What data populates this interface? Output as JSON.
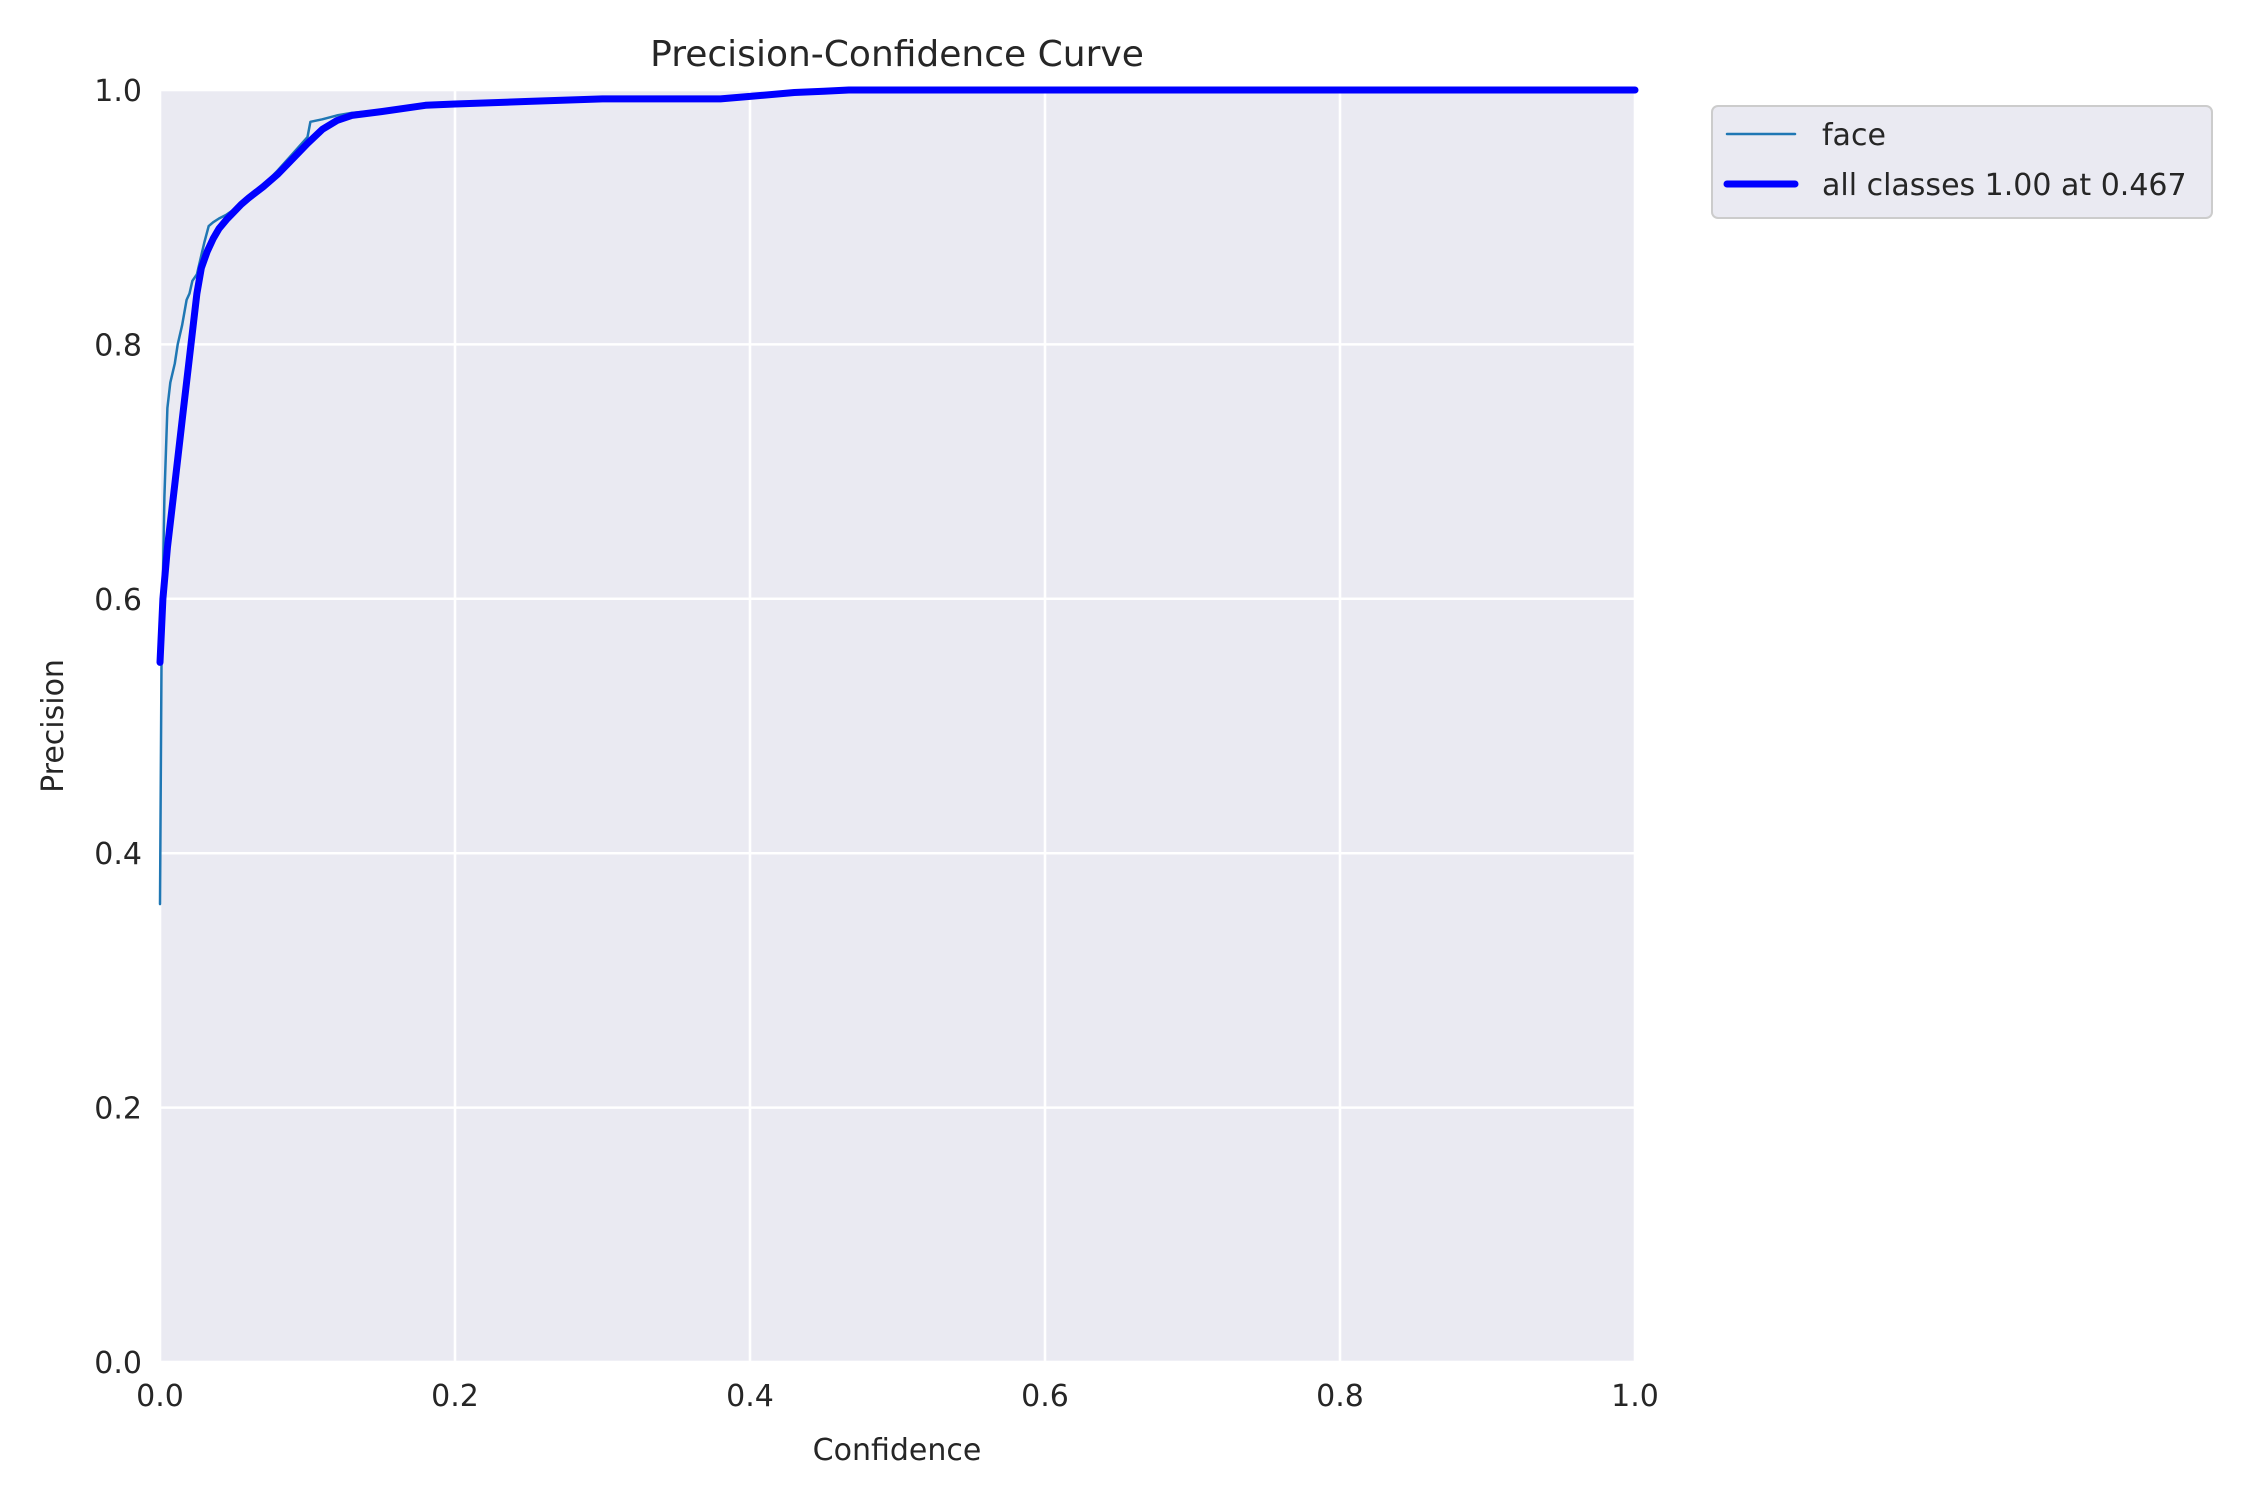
{
  "chart_data": {
    "type": "line",
    "title": "Precision-Confidence Curve",
    "xlabel": "Confidence",
    "ylabel": "Precision",
    "xlim": [
      0,
      1
    ],
    "ylim": [
      0,
      1
    ],
    "xticks": [
      "0.0",
      "0.2",
      "0.4",
      "0.6",
      "0.8",
      "1.0"
    ],
    "yticks": [
      "0.0",
      "0.2",
      "0.4",
      "0.6",
      "0.8",
      "1.0"
    ],
    "grid": true,
    "legend_position": "outside top-right",
    "colors": {
      "plot_background": "#eaeaf2",
      "grid": "#ffffff",
      "face": "#1f77b4",
      "all_classes": "#0000ff"
    },
    "series": [
      {
        "name": "face",
        "x": [
          0,
          0.001,
          0.003,
          0.005,
          0.007,
          0.01,
          0.012,
          0.015,
          0.018,
          0.02,
          0.022,
          0.025,
          0.028,
          0.03,
          0.033,
          0.036,
          0.04,
          0.045,
          0.05,
          0.06,
          0.07,
          0.08,
          0.09,
          0.1,
          0.102,
          0.11,
          0.12,
          0.13,
          0.15,
          0.18,
          0.2,
          0.25,
          0.3,
          0.35,
          0.38,
          0.4,
          0.43,
          0.45,
          0.467,
          0.5,
          0.6,
          0.7,
          0.8,
          0.9,
          1.0
        ],
        "y": [
          0.36,
          0.55,
          0.68,
          0.75,
          0.77,
          0.785,
          0.8,
          0.815,
          0.835,
          0.84,
          0.85,
          0.855,
          0.87,
          0.88,
          0.893,
          0.896,
          0.899,
          0.902,
          0.906,
          0.915,
          0.925,
          0.937,
          0.95,
          0.963,
          0.975,
          0.977,
          0.98,
          0.982,
          0.984,
          0.988,
          0.99,
          0.992,
          0.994,
          0.994,
          0.994,
          0.996,
          0.998,
          1.0,
          1.0,
          1.0,
          1.0,
          1.0,
          1.0,
          1.0,
          1.0
        ]
      },
      {
        "name": "all classes 1.00 at 0.467",
        "x": [
          0,
          0.002,
          0.005,
          0.01,
          0.015,
          0.02,
          0.025,
          0.028,
          0.032,
          0.036,
          0.04,
          0.045,
          0.05,
          0.055,
          0.06,
          0.07,
          0.08,
          0.09,
          0.1,
          0.11,
          0.12,
          0.13,
          0.15,
          0.18,
          0.2,
          0.25,
          0.3,
          0.35,
          0.38,
          0.4,
          0.43,
          0.45,
          0.467,
          0.5,
          0.6,
          0.7,
          0.8,
          0.9,
          1.0
        ],
        "y": [
          0.55,
          0.6,
          0.64,
          0.69,
          0.74,
          0.79,
          0.84,
          0.86,
          0.873,
          0.883,
          0.891,
          0.898,
          0.904,
          0.91,
          0.915,
          0.924,
          0.934,
          0.946,
          0.958,
          0.969,
          0.976,
          0.98,
          0.983,
          0.988,
          0.989,
          0.991,
          0.993,
          0.993,
          0.993,
          0.995,
          0.998,
          0.999,
          1.0,
          1.0,
          1.0,
          1.0,
          1.0,
          1.0,
          1.0
        ]
      }
    ]
  }
}
